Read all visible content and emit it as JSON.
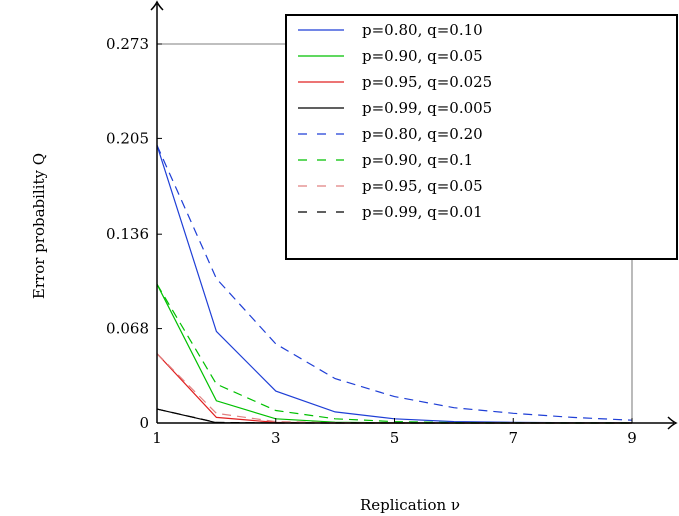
{
  "chart_data": {
    "type": "line",
    "title": "",
    "xlabel": "Replication ν",
    "ylabel": "Error probability Q",
    "xlim": [
      1,
      10
    ],
    "ylim": [
      0,
      0.273
    ],
    "x_ticks": [
      {
        "value": 1,
        "label": "1"
      },
      {
        "value": 3,
        "label": "3"
      },
      {
        "value": 5,
        "label": "5"
      },
      {
        "value": 7,
        "label": "7"
      },
      {
        "value": 9,
        "label": "9"
      }
    ],
    "y_ticks": [
      {
        "value": 0,
        "label": "0"
      },
      {
        "value": 0.068,
        "label": "0.068"
      },
      {
        "value": 0.136,
        "label": "0.136"
      },
      {
        "value": 0.205,
        "label": "0.205"
      },
      {
        "value": 0.273,
        "label": "0.273"
      }
    ],
    "legend_position": "top-right",
    "series": [
      {
        "name": "p=0.80, q=0.10",
        "color": "#1f3fd6",
        "dash": "solid",
        "x": [
          1,
          2,
          3,
          4,
          5,
          6,
          7,
          8,
          9
        ],
        "y": [
          0.2,
          0.066,
          0.023,
          0.008,
          0.003,
          0.001,
          0.0005,
          0.0002,
          0.0001
        ]
      },
      {
        "name": "p=0.90, q=0.05",
        "color": "#00c000",
        "dash": "solid",
        "x": [
          1,
          2,
          3,
          4,
          5,
          6,
          7,
          8,
          9
        ],
        "y": [
          0.1,
          0.016,
          0.003,
          0.0006,
          0.0001,
          0,
          0,
          0,
          0
        ]
      },
      {
        "name": "p=0.95, q=0.025",
        "color": "#e02020",
        "dash": "solid",
        "x": [
          1,
          2,
          3,
          4,
          5,
          6,
          7,
          8,
          9
        ],
        "y": [
          0.05,
          0.004,
          0.0004,
          0,
          0,
          0,
          0,
          0,
          0
        ]
      },
      {
        "name": "p=0.99, q=0.005",
        "color": "#000000",
        "dash": "solid",
        "x": [
          1,
          2,
          3,
          4,
          5,
          6,
          7,
          8,
          9
        ],
        "y": [
          0.01,
          0.0002,
          0,
          0,
          0,
          0,
          0,
          0,
          0
        ]
      },
      {
        "name": "p=0.80, q=0.20",
        "color": "#1f3fd6",
        "dash": "dashed",
        "x": [
          1,
          2,
          3,
          4,
          5,
          6,
          7,
          8,
          9
        ],
        "y": [
          0.2,
          0.104,
          0.057,
          0.032,
          0.019,
          0.011,
          0.007,
          0.004,
          0.002
        ]
      },
      {
        "name": "p=0.90, q=0.1",
        "color": "#00c000",
        "dash": "dashed",
        "x": [
          1,
          2,
          3,
          4,
          5,
          6,
          7,
          8,
          9
        ],
        "y": [
          0.1,
          0.028,
          0.009,
          0.003,
          0.001,
          0.0003,
          0.0001,
          0,
          0
        ]
      },
      {
        "name": "p=0.95, q=0.05",
        "color": "#e08080",
        "dash": "dashed",
        "x": [
          1,
          2,
          3,
          4,
          5,
          6,
          7,
          8,
          9
        ],
        "y": [
          0.05,
          0.007,
          0.001,
          0.0002,
          0,
          0,
          0,
          0,
          0
        ]
      },
      {
        "name": "p=0.99, q=0.01",
        "color": "#000000",
        "dash": "dashed",
        "x": [
          1,
          2,
          3,
          4,
          5,
          6,
          7,
          8,
          9
        ],
        "y": [
          0.01,
          0.0004,
          0,
          0,
          0,
          0,
          0,
          0,
          0
        ]
      }
    ]
  }
}
